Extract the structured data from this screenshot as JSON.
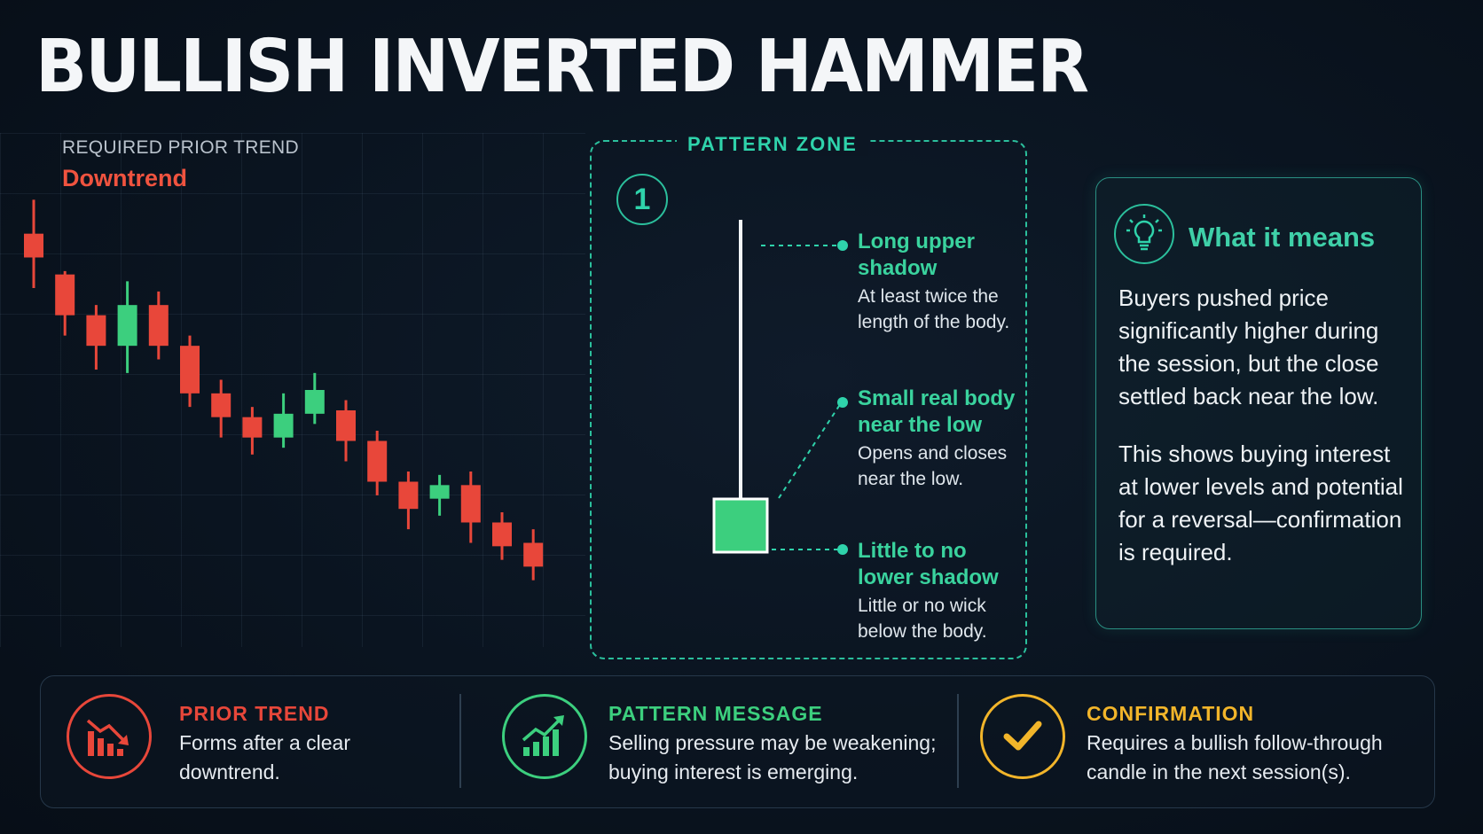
{
  "title": "BULLISH INVERTED HAMMER",
  "prior_trend": {
    "label": "REQUIRED PRIOR TREND",
    "value": "Downtrend"
  },
  "candles": [
    {
      "o": 7.1,
      "h": 7.6,
      "l": 6.3,
      "c": 6.75
    },
    {
      "o": 6.5,
      "h": 6.55,
      "l": 5.6,
      "c": 5.9
    },
    {
      "o": 5.9,
      "h": 6.05,
      "l": 5.1,
      "c": 5.45
    },
    {
      "o": 5.45,
      "h": 6.4,
      "l": 5.05,
      "c": 6.05
    },
    {
      "o": 6.05,
      "h": 6.25,
      "l": 5.25,
      "c": 5.45
    },
    {
      "o": 5.45,
      "h": 5.6,
      "l": 4.55,
      "c": 4.75
    },
    {
      "o": 4.75,
      "h": 4.95,
      "l": 4.1,
      "c": 4.4
    },
    {
      "o": 4.4,
      "h": 4.55,
      "l": 3.85,
      "c": 4.1
    },
    {
      "o": 4.1,
      "h": 4.75,
      "l": 3.95,
      "c": 4.45
    },
    {
      "o": 4.45,
      "h": 5.05,
      "l": 4.3,
      "c": 4.8
    },
    {
      "o": 4.5,
      "h": 4.65,
      "l": 3.75,
      "c": 4.05
    },
    {
      "o": 4.05,
      "h": 4.2,
      "l": 3.25,
      "c": 3.45
    },
    {
      "o": 3.45,
      "h": 3.6,
      "l": 2.75,
      "c": 3.05
    },
    {
      "o": 3.2,
      "h": 3.55,
      "l": 2.95,
      "c": 3.4
    },
    {
      "o": 3.4,
      "h": 3.6,
      "l": 2.55,
      "c": 2.85
    },
    {
      "o": 2.85,
      "h": 3.0,
      "l": 2.3,
      "c": 2.5
    },
    {
      "o": 2.55,
      "h": 2.75,
      "l": 2.0,
      "c": 2.2
    }
  ],
  "zone": {
    "title": "PATTERN ZONE",
    "number": "1",
    "annotations": [
      {
        "heading": "Long upper shadow",
        "desc": "At least twice the length of the body."
      },
      {
        "heading": "Small real body near the low",
        "desc": "Opens and closes near the low."
      },
      {
        "heading": "Little to no lower shadow",
        "desc": "Little or no wick below the body."
      }
    ]
  },
  "means": {
    "icon": "lightbulb-icon",
    "title": "What it means",
    "p1": "Buyers pushed price significantly higher during the session, but the close settled back near the low.",
    "p2": "This shows buying interest at lower levels and potential for a reversal—confirmation is required."
  },
  "bottom": [
    {
      "icon": "downtrend-chart-icon",
      "heading": "PRIOR TREND",
      "text": "Forms after a clear downtrend.",
      "color": "#e8473a"
    },
    {
      "icon": "uptrend-chart-icon",
      "heading": "PATTERN MESSAGE",
      "text": "Selling pressure may be weakening; buying interest is emerging.",
      "color": "#3ccf7e"
    },
    {
      "icon": "checkmark-icon",
      "heading": "CONFIRMATION",
      "text": "Requires a bullish follow-through candle in the next session(s).",
      "color": "#f2b52a"
    }
  ],
  "colors": {
    "bear": "#e8473a",
    "bull": "#3ccf7e",
    "accent": "#2fd3ab"
  }
}
